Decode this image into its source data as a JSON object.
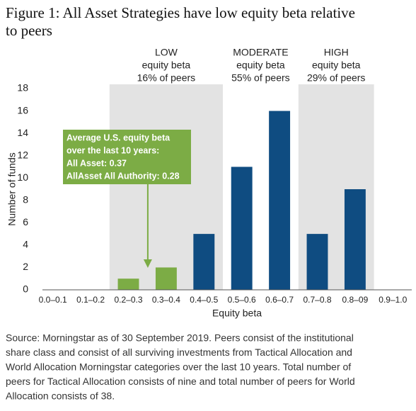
{
  "chart_data": {
    "type": "bar",
    "title_lines": [
      "Figure 1: All Asset Strategies have low equity beta relative",
      "to peers"
    ],
    "categories": [
      "0.0–0.1",
      "0.1–0.2",
      "0.2–0.3",
      "0.3–0.4",
      "0.4–0.5",
      "0.5–0.6",
      "0.6–0.7",
      "0.7–0.8",
      "0.8–09",
      "0.9–1.0"
    ],
    "values": [
      0,
      0,
      1,
      2,
      5,
      11,
      16,
      5,
      9,
      0
    ],
    "colors": [
      "#0f4c81",
      "#0f4c81",
      "#7cac45",
      "#7cac45",
      "#0f4c81",
      "#0f4c81",
      "#0f4c81",
      "#0f4c81",
      "#0f4c81",
      "#0f4c81"
    ],
    "ylim": [
      0,
      18
    ],
    "yticks": [
      0,
      2,
      4,
      6,
      8,
      10,
      12,
      14,
      16,
      18
    ],
    "ylabel": "Number of funds",
    "xlabel": "Equity beta",
    "regions": [
      {
        "lines": [
          "LOW",
          "equity beta",
          "16% of peers"
        ],
        "from": "0.2–0.3",
        "to": "0.4–0.5",
        "shaded": true
      },
      {
        "lines": [
          "MODERATE",
          "equity beta",
          "55% of peers"
        ],
        "from": "0.5–0.6",
        "to": "0.6–0.7",
        "shaded": false
      },
      {
        "lines": [
          "HIGH",
          "equity beta",
          "29% of peers"
        ],
        "from": "0.7–0.8",
        "to": "0.8–09",
        "shaded": true
      }
    ],
    "annotation": {
      "lines": [
        "Average U.S. equity beta",
        "over the last 10 years:",
        "All Asset: 0.37",
        "AllAsset All Authority: 0.28"
      ],
      "points_to": "0.3–0.4"
    },
    "source_lines": [
      "Source: Morningstar as of 30 September 2019. Peers consist of the institutional",
      "share class and consist of all surviving investments from Tactical Allocation and",
      "World Allocation Morningstar categories over the last 10 years. Total number of",
      "peers for Tactical Allocation consists of nine and total number of peers for World",
      "Allocation consists of 38."
    ]
  }
}
